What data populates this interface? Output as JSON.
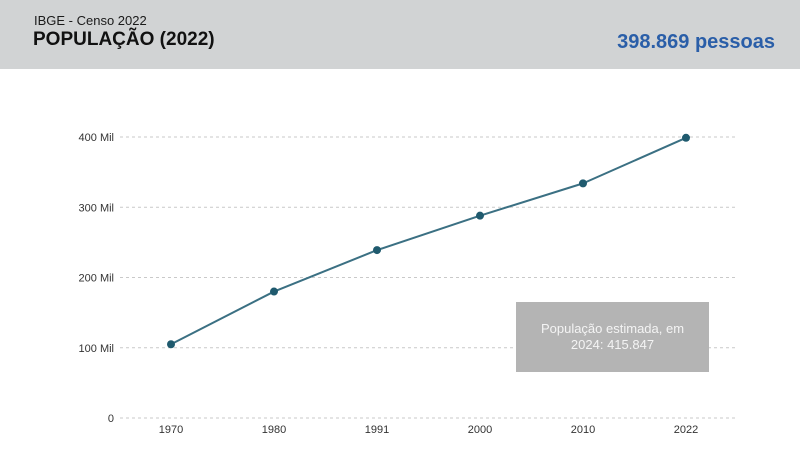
{
  "header": {
    "subtitle": "IBGE - Censo 2022",
    "title": "POPULAÇÃO (2022)",
    "total": "398.869 pessoas"
  },
  "note": "População estimada, em 2024: 415.847",
  "colors": {
    "header_bg": "#d1d3d4",
    "total_text": "#2a5ea8",
    "line": "#3b7083",
    "marker": "#1f5a6e",
    "note_bg": "#b4b4b4"
  },
  "chart_data": {
    "type": "line",
    "categories": [
      "1970",
      "1980",
      "1991",
      "2000",
      "2010",
      "2022"
    ],
    "values": [
      105000,
      180000,
      239000,
      288000,
      334000,
      398869
    ],
    "ylim": [
      0,
      400000
    ],
    "yticks": [
      {
        "value": 0,
        "label": "0"
      },
      {
        "value": 100000,
        "label": "100 Mil"
      },
      {
        "value": 200000,
        "label": "200 Mil"
      },
      {
        "value": 300000,
        "label": "300 Mil"
      },
      {
        "value": 400000,
        "label": "400 Mil"
      }
    ],
    "grid": true,
    "legend": false
  }
}
